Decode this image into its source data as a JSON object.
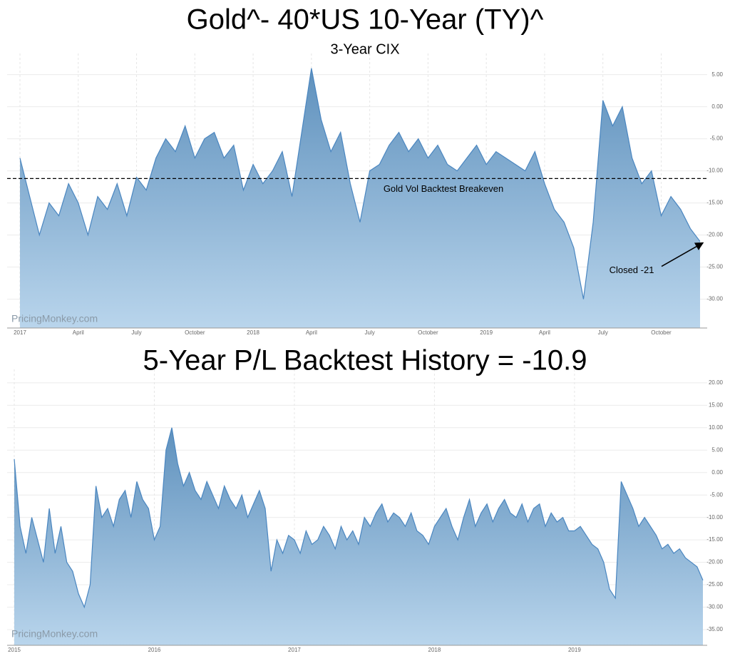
{
  "chart_data": [
    {
      "type": "area",
      "title": "Gold^- 40*US 10-Year (TY)^",
      "subtitle": "3-Year CIX",
      "watermark": "PricingMonkey.com",
      "color": "#4a86c0",
      "grid": true,
      "categories": [
        "2017",
        null,
        null,
        null,
        null,
        null,
        "April",
        null,
        null,
        null,
        null,
        null,
        "July",
        null,
        null,
        null,
        null,
        null,
        "October",
        null,
        null,
        null,
        null,
        null,
        "2018",
        null,
        null,
        null,
        null,
        null,
        "April",
        null,
        null,
        null,
        null,
        null,
        "July",
        null,
        null,
        null,
        null,
        null,
        "October",
        null,
        null,
        null,
        null,
        null,
        "2019",
        null,
        null,
        null,
        null,
        null,
        "April",
        null,
        null,
        null,
        null,
        null,
        "July",
        null,
        null,
        null,
        null,
        null,
        "October",
        null,
        null,
        null,
        null
      ],
      "values": [
        -8,
        -14,
        -20,
        -15,
        -17,
        -12,
        -15,
        -20,
        -14,
        -16,
        -12,
        -17,
        -11,
        -13,
        -8,
        -5,
        -7,
        -3,
        -8,
        -5,
        -4,
        -8,
        -6,
        -13,
        -9,
        -12,
        -10,
        -7,
        -14,
        -4,
        6,
        -2,
        -7,
        -4,
        -12,
        -18,
        -10,
        -9,
        -6,
        -4,
        -7,
        -5,
        -8,
        -6,
        -9,
        -10,
        -8,
        -6,
        -9,
        -7,
        -8,
        -9,
        -10,
        -7,
        -12,
        -16,
        -18,
        -22,
        -30,
        -18,
        1,
        -3,
        0,
        -8,
        -12,
        -10,
        -17,
        -14,
        -16,
        -19,
        -21
      ],
      "ylim": [
        -34.5,
        8.3
      ],
      "yticks": [
        {
          "value": 5,
          "label": "5.00"
        },
        {
          "value": 0,
          "label": "0.00"
        },
        {
          "value": -5,
          "label": "-5.00"
        },
        {
          "value": -10,
          "label": "-10.00"
        },
        {
          "value": -15,
          "label": "-15.00"
        },
        {
          "value": -20,
          "label": "-20.00"
        },
        {
          "value": -25,
          "label": "-25.00"
        },
        {
          "value": -30,
          "label": "-30.00"
        }
      ],
      "annotations": [
        {
          "text": "Gold Vol Backtest Breakeven",
          "y": -11.2
        },
        {
          "text": "Closed -21"
        }
      ]
    },
    {
      "type": "area",
      "title": "5-Year P/L Backtest History = -10.9",
      "watermark": "PricingMonkey.com",
      "color": "#4a86c0",
      "grid": true,
      "categories": [
        "2015",
        null,
        null,
        null,
        null,
        null,
        null,
        null,
        null,
        null,
        null,
        null,
        null,
        null,
        null,
        null,
        null,
        null,
        null,
        null,
        null,
        null,
        null,
        null,
        "2016",
        null,
        null,
        null,
        null,
        null,
        null,
        null,
        null,
        null,
        null,
        null,
        null,
        null,
        null,
        null,
        null,
        null,
        null,
        null,
        null,
        null,
        null,
        null,
        "2017",
        null,
        null,
        null,
        null,
        null,
        null,
        null,
        null,
        null,
        null,
        null,
        null,
        null,
        null,
        null,
        null,
        null,
        null,
        null,
        null,
        null,
        null,
        null,
        "2018",
        null,
        null,
        null,
        null,
        null,
        null,
        null,
        null,
        null,
        null,
        null,
        null,
        null,
        null,
        null,
        null,
        null,
        null,
        null,
        null,
        null,
        null,
        null,
        "2019",
        null,
        null,
        null,
        null,
        null,
        null,
        null,
        null,
        null,
        null,
        null,
        null,
        null,
        null,
        null,
        null,
        null,
        null,
        null,
        null,
        null,
        null
      ],
      "values": [
        3,
        -12,
        -18,
        -10,
        -15,
        -20,
        -8,
        -18,
        -12,
        -20,
        -22,
        -27,
        -30,
        -25,
        -3,
        -10,
        -8,
        -12,
        -6,
        -4,
        -10,
        -2,
        -6,
        -8,
        -15,
        -12,
        5,
        10,
        2,
        -3,
        0,
        -4,
        -6,
        -2,
        -5,
        -8,
        -3,
        -6,
        -8,
        -5,
        -10,
        -7,
        -4,
        -8,
        -22,
        -15,
        -18,
        -14,
        -15,
        -18,
        -13,
        -16,
        -15,
        -12,
        -14,
        -17,
        -12,
        -15,
        -13,
        -16,
        -10,
        -12,
        -9,
        -7,
        -11,
        -9,
        -10,
        -12,
        -9,
        -13,
        -14,
        -16,
        -12,
        -10,
        -8,
        -12,
        -15,
        -10,
        -6,
        -12,
        -9,
        -7,
        -11,
        -8,
        -6,
        -9,
        -10,
        -7,
        -11,
        -8,
        -7,
        -12,
        -9,
        -11,
        -10,
        -13,
        -13,
        -12,
        -14,
        -16,
        -17,
        -20,
        -26,
        -28,
        -2,
        -5,
        -8,
        -12,
        -10,
        -12,
        -14,
        -17,
        -16,
        -18,
        -17,
        -19,
        -20,
        -21,
        -24
      ],
      "ylim": [
        -38.5,
        23
      ],
      "yticks": [
        {
          "value": 20,
          "label": "20.00"
        },
        {
          "value": 15,
          "label": "15.00"
        },
        {
          "value": 10,
          "label": "10.00"
        },
        {
          "value": 5,
          "label": "5.00"
        },
        {
          "value": 0,
          "label": "0.00"
        },
        {
          "value": -5,
          "label": "-5.00"
        },
        {
          "value": -10,
          "label": "-10.00"
        },
        {
          "value": -15,
          "label": "-15.00"
        },
        {
          "value": -20,
          "label": "-20.00"
        },
        {
          "value": -25,
          "label": "-25.00"
        },
        {
          "value": -30,
          "label": "-30.00"
        },
        {
          "value": -35,
          "label": "-35.00"
        }
      ]
    }
  ]
}
